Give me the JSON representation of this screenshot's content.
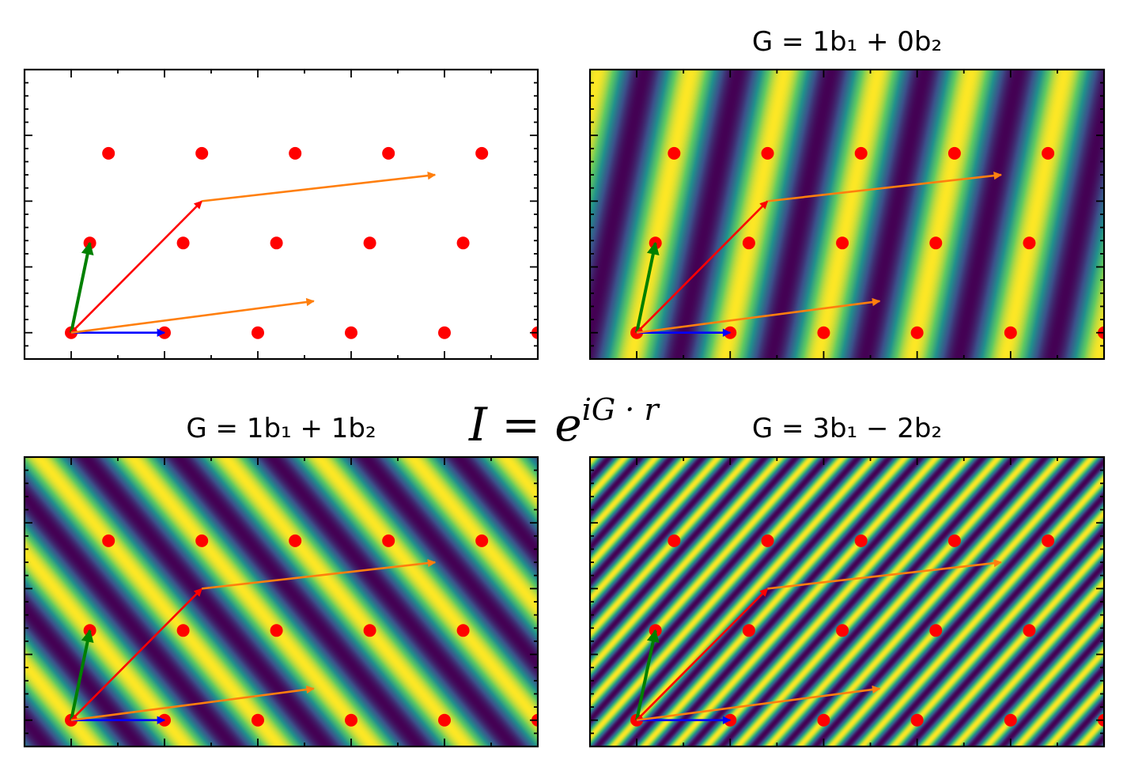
{
  "figure": {
    "suptitle": {
      "base": "I = e",
      "superscript": "iG · r"
    }
  },
  "lattice": {
    "a1": [
      1.0,
      0.0
    ],
    "a2": [
      0.2,
      0.6818
    ],
    "colors": {
      "points": "#ff0000",
      "a1_arrow": "#0000ff",
      "a2_arrow": "#008000",
      "red_arrow": "#ff0000",
      "orange_arrow": "#ff7f0e"
    },
    "arrows": [
      {
        "name": "a1-arrow",
        "from": [
          0,
          0
        ],
        "to": [
          1.0,
          0.0
        ],
        "color": "#0000ff"
      },
      {
        "name": "a2-arrow",
        "from": [
          0,
          0
        ],
        "to": [
          0.2,
          0.6818
        ],
        "color": "#008000"
      },
      {
        "name": "red-arrow",
        "from": [
          0,
          0
        ],
        "to": [
          1.4,
          1.0
        ],
        "color": "#ff0000"
      },
      {
        "name": "orange-arrow-upper",
        "from": [
          1.4,
          1.0
        ],
        "to": [
          3.9,
          1.2
        ],
        "color": "#ff7f0e"
      },
      {
        "name": "orange-arrow-lower",
        "from": [
          0,
          0
        ],
        "to": [
          2.6,
          0.24
        ],
        "color": "#ff7f0e"
      }
    ]
  },
  "chart_data": [
    {
      "type": "heatmap",
      "panel": "top-left",
      "title": "",
      "background": "none",
      "G": null,
      "xlim": [
        -0.5,
        5.0
      ],
      "ylim": [
        -0.2,
        2.0
      ],
      "grid": false
    },
    {
      "type": "heatmap",
      "panel": "top-right",
      "title": "G = 1b₁ + 0b₂",
      "G": [
        1,
        0
      ],
      "colormap": "viridis",
      "xlim": [
        -0.5,
        5.0
      ],
      "ylim": [
        -0.2,
        2.0
      ],
      "grid": false
    },
    {
      "type": "heatmap",
      "panel": "bottom-left",
      "title": "G = 1b₁ + 1b₂",
      "G": [
        1,
        1
      ],
      "colormap": "viridis",
      "xlim": [
        -0.5,
        5.0
      ],
      "ylim": [
        -0.2,
        2.0
      ],
      "grid": false
    },
    {
      "type": "heatmap",
      "panel": "bottom-right",
      "title": "G = 3b₁ − 2b₂",
      "G": [
        3,
        -2
      ],
      "colormap": "viridis",
      "xlim": [
        -0.5,
        5.0
      ],
      "ylim": [
        -0.2,
        2.0
      ],
      "grid": false
    }
  ]
}
